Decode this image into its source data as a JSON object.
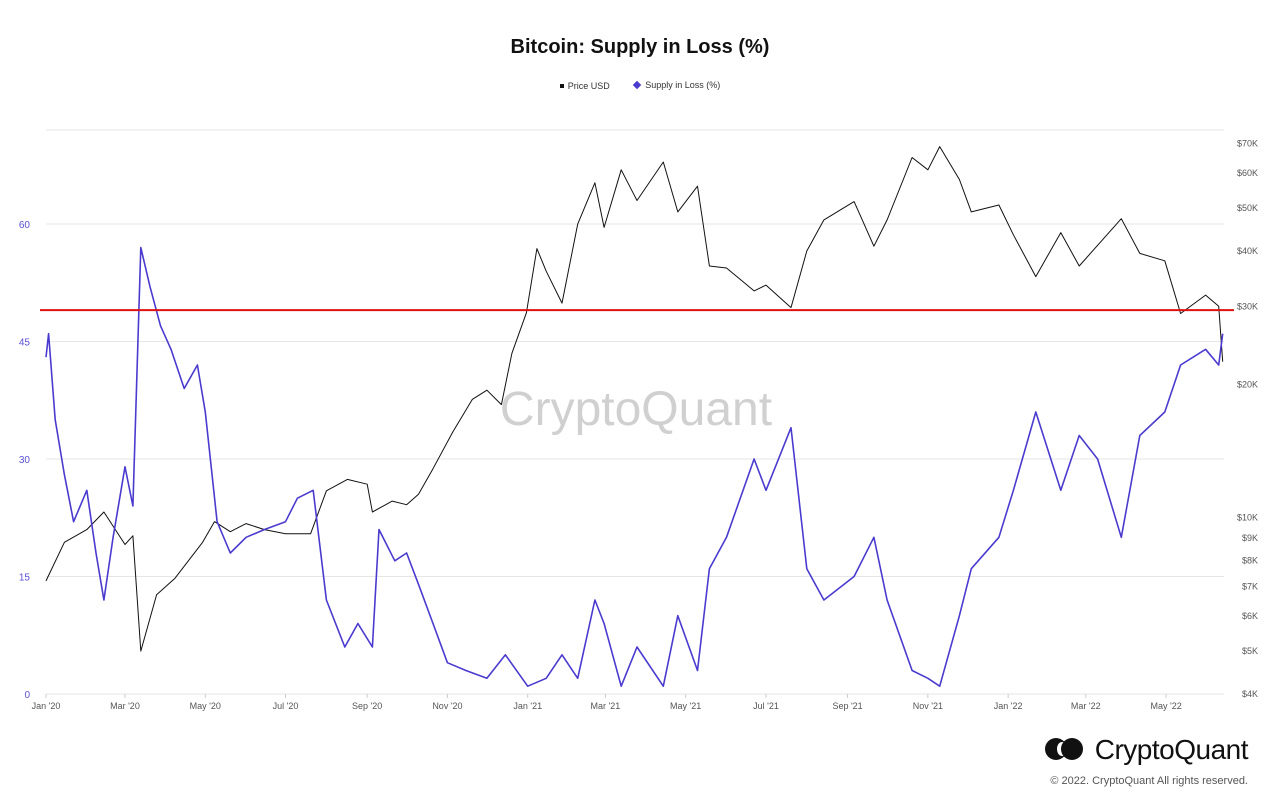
{
  "chart_data": {
    "type": "line",
    "title": "Bitcoin: Supply in Loss (%)",
    "legend": [
      "Price USD",
      "Supply in Loss (%)"
    ],
    "legend_position": "top-center",
    "x_ticks": [
      "Jan '20",
      "Mar '20",
      "May '20",
      "Jul '20",
      "Sep '20",
      "Nov '20",
      "Jan '21",
      "Mar '21",
      "May '21",
      "Jul '21",
      "Sep '21",
      "Nov '21",
      "Jan '22",
      "Mar '22",
      "May '22"
    ],
    "y_left_ticks": [
      "0",
      "15",
      "30",
      "45",
      "60"
    ],
    "y_left_range": [
      0,
      72
    ],
    "y_right_ticks": [
      "$4K",
      "$5K",
      "$6K",
      "$7K",
      "$8K",
      "$9K",
      "$10K",
      "$20K",
      "$30K",
      "$40K",
      "$50K",
      "$60K",
      "$70K"
    ],
    "y_right_scale": "log",
    "y_right_range": [
      4000,
      75000
    ],
    "reference_line": {
      "value": 49,
      "axis": "left",
      "color": "#dd1111"
    },
    "series": [
      {
        "name": "Price USD",
        "axis": "right",
        "color": "#111111",
        "points": [
          [
            "2020-01-01",
            7200
          ],
          [
            "2020-01-15",
            8800
          ],
          [
            "2020-02-01",
            9400
          ],
          [
            "2020-02-14",
            10300
          ],
          [
            "2020-03-01",
            8700
          ],
          [
            "2020-03-07",
            9100
          ],
          [
            "2020-03-13",
            5000
          ],
          [
            "2020-03-25",
            6700
          ],
          [
            "2020-04-08",
            7300
          ],
          [
            "2020-04-29",
            8800
          ],
          [
            "2020-05-08",
            9800
          ],
          [
            "2020-05-20",
            9300
          ],
          [
            "2020-06-01",
            9700
          ],
          [
            "2020-06-15",
            9400
          ],
          [
            "2020-07-01",
            9200
          ],
          [
            "2020-07-20",
            9200
          ],
          [
            "2020-08-01",
            11500
          ],
          [
            "2020-08-17",
            12200
          ],
          [
            "2020-09-01",
            11900
          ],
          [
            "2020-09-05",
            10300
          ],
          [
            "2020-09-20",
            10900
          ],
          [
            "2020-10-01",
            10700
          ],
          [
            "2020-10-10",
            11300
          ],
          [
            "2020-10-21",
            12900
          ],
          [
            "2020-11-05",
            15600
          ],
          [
            "2020-11-20",
            18500
          ],
          [
            "2020-12-01",
            19400
          ],
          [
            "2020-12-12",
            18000
          ],
          [
            "2020-12-20",
            23500
          ],
          [
            "2020-12-31",
            29000
          ],
          [
            "2021-01-08",
            40500
          ],
          [
            "2021-01-15",
            36000
          ],
          [
            "2021-01-27",
            30500
          ],
          [
            "2021-02-08",
            46000
          ],
          [
            "2021-02-21",
            57000
          ],
          [
            "2021-02-28",
            45200
          ],
          [
            "2021-03-13",
            61000
          ],
          [
            "2021-03-25",
            52000
          ],
          [
            "2021-04-14",
            63500
          ],
          [
            "2021-04-25",
            49000
          ],
          [
            "2021-05-10",
            56000
          ],
          [
            "2021-05-19",
            37000
          ],
          [
            "2021-06-01",
            36600
          ],
          [
            "2021-06-22",
            32500
          ],
          [
            "2021-07-01",
            33500
          ],
          [
            "2021-07-20",
            29800
          ],
          [
            "2021-08-01",
            40000
          ],
          [
            "2021-08-14",
            47000
          ],
          [
            "2021-09-06",
            51700
          ],
          [
            "2021-09-21",
            41000
          ],
          [
            "2021-10-01",
            47000
          ],
          [
            "2021-10-20",
            65000
          ],
          [
            "2021-11-01",
            61000
          ],
          [
            "2021-11-10",
            68800
          ],
          [
            "2021-11-25",
            58000
          ],
          [
            "2021-12-04",
            49000
          ],
          [
            "2021-12-25",
            50800
          ],
          [
            "2022-01-05",
            43500
          ],
          [
            "2022-01-22",
            35000
          ],
          [
            "2022-02-10",
            44000
          ],
          [
            "2022-02-24",
            37000
          ],
          [
            "2022-03-28",
            47300
          ],
          [
            "2022-04-11",
            39500
          ],
          [
            "2022-04-30",
            38000
          ],
          [
            "2022-05-12",
            28900
          ],
          [
            "2022-05-31",
            31800
          ],
          [
            "2022-06-10",
            30000
          ],
          [
            "2022-06-13",
            22500
          ]
        ]
      },
      {
        "name": "Supply in Loss (%)",
        "axis": "left",
        "color": "#4a3bcf",
        "points": [
          [
            "2020-01-01",
            43
          ],
          [
            "2020-01-03",
            46
          ],
          [
            "2020-01-08",
            35
          ],
          [
            "2020-01-15",
            28
          ],
          [
            "2020-01-22",
            22
          ],
          [
            "2020-02-01",
            26
          ],
          [
            "2020-02-08",
            18
          ],
          [
            "2020-02-14",
            12
          ],
          [
            "2020-02-21",
            20
          ],
          [
            "2020-03-01",
            29
          ],
          [
            "2020-03-07",
            24
          ],
          [
            "2020-03-13",
            57
          ],
          [
            "2020-03-20",
            52
          ],
          [
            "2020-03-28",
            47
          ],
          [
            "2020-04-05",
            44
          ],
          [
            "2020-04-15",
            39
          ],
          [
            "2020-04-25",
            42
          ],
          [
            "2020-05-01",
            36
          ],
          [
            "2020-05-10",
            22
          ],
          [
            "2020-05-20",
            18
          ],
          [
            "2020-06-01",
            20
          ],
          [
            "2020-06-15",
            21
          ],
          [
            "2020-07-01",
            22
          ],
          [
            "2020-07-10",
            25
          ],
          [
            "2020-07-22",
            26
          ],
          [
            "2020-08-01",
            12
          ],
          [
            "2020-08-15",
            6
          ],
          [
            "2020-08-25",
            9
          ],
          [
            "2020-09-05",
            6
          ],
          [
            "2020-09-10",
            21
          ],
          [
            "2020-09-22",
            17
          ],
          [
            "2020-10-01",
            18
          ],
          [
            "2020-10-10",
            14
          ],
          [
            "2020-10-21",
            9
          ],
          [
            "2020-11-01",
            4
          ],
          [
            "2020-11-15",
            3
          ],
          [
            "2020-12-01",
            2
          ],
          [
            "2020-12-15",
            5
          ],
          [
            "2021-01-01",
            1
          ],
          [
            "2021-01-15",
            2
          ],
          [
            "2021-01-27",
            5
          ],
          [
            "2021-02-08",
            2
          ],
          [
            "2021-02-21",
            12
          ],
          [
            "2021-02-28",
            9
          ],
          [
            "2021-03-13",
            1
          ],
          [
            "2021-03-25",
            6
          ],
          [
            "2021-04-14",
            1
          ],
          [
            "2021-04-25",
            10
          ],
          [
            "2021-05-10",
            3
          ],
          [
            "2021-05-19",
            16
          ],
          [
            "2021-06-01",
            20
          ],
          [
            "2021-06-22",
            30
          ],
          [
            "2021-07-01",
            26
          ],
          [
            "2021-07-20",
            34
          ],
          [
            "2021-08-01",
            16
          ],
          [
            "2021-08-14",
            12
          ],
          [
            "2021-09-06",
            15
          ],
          [
            "2021-09-21",
            20
          ],
          [
            "2021-10-01",
            12
          ],
          [
            "2021-10-20",
            3
          ],
          [
            "2021-11-01",
            2
          ],
          [
            "2021-11-10",
            1
          ],
          [
            "2021-11-25",
            10
          ],
          [
            "2021-12-04",
            16
          ],
          [
            "2021-12-25",
            20
          ],
          [
            "2022-01-05",
            26
          ],
          [
            "2022-01-22",
            36
          ],
          [
            "2022-02-10",
            26
          ],
          [
            "2022-02-24",
            33
          ],
          [
            "2022-03-10",
            30
          ],
          [
            "2022-03-28",
            20
          ],
          [
            "2022-04-11",
            33
          ],
          [
            "2022-04-30",
            36
          ],
          [
            "2022-05-12",
            42
          ],
          [
            "2022-05-31",
            44
          ],
          [
            "2022-06-10",
            42
          ],
          [
            "2022-06-13",
            46
          ]
        ]
      }
    ]
  },
  "watermark": "CryptoQuant",
  "footer": {
    "brand": "CryptoQuant",
    "copyright": "© 2022. CryptoQuant All rights reserved."
  }
}
